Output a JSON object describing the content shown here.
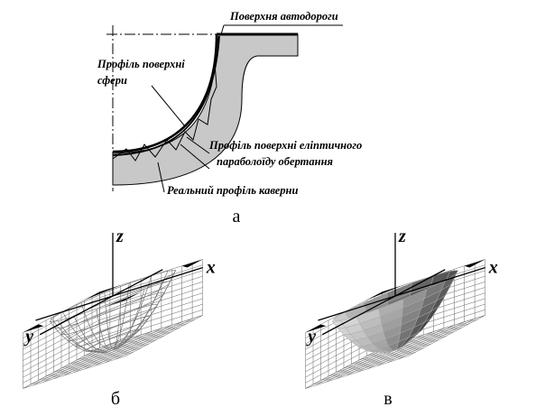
{
  "panel_a": {
    "road_label": "Поверхня автодороги",
    "sphere_label": {
      "lines": [
        "Профіль поверхні",
        "сфери"
      ]
    },
    "paraboloid_label": {
      "lines": [
        "Профіль поверхні еліптичного",
        "параболоїду обертання"
      ]
    },
    "cavern_label": "Реальний профіль каверни",
    "caption": "а"
  },
  "panel_b": {
    "axes": {
      "z": "z",
      "y": "y",
      "x": "x"
    },
    "caption": "б"
  },
  "panel_c": {
    "axes": {
      "z": "z",
      "y": "y",
      "x": "x"
    },
    "caption": "в"
  }
}
